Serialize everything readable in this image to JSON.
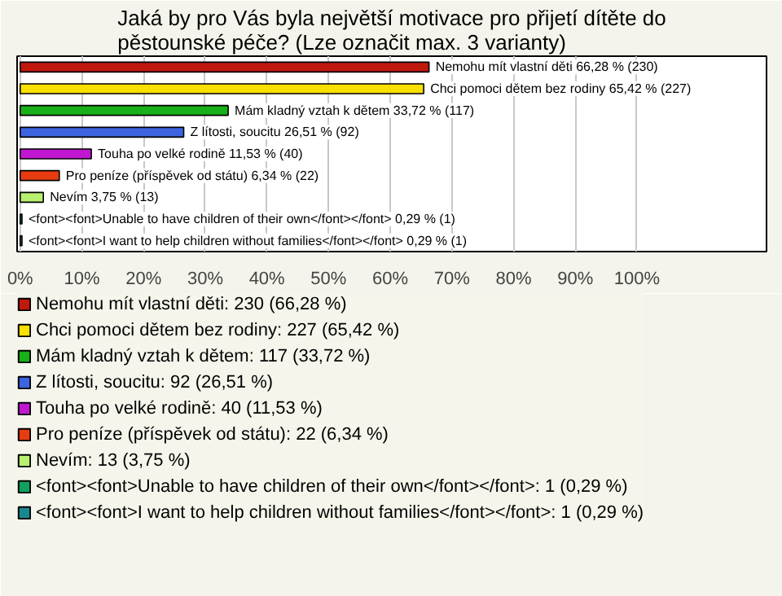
{
  "chart_data": {
    "type": "bar",
    "orientation": "horizontal",
    "title": "Jaká by pro Vás byla největší motivace pro přijetí dítěte do pěstounské péče? (Lze označit max. 3 varianty)",
    "categories": [
      null,
      null,
      null,
      null,
      null,
      null,
      null,
      null,
      null
    ],
    "series": [
      {
        "name": "Nemohu mít vlastní děti: 230 (66,28 %)",
        "color": "#c0180c",
        "values": [
          66.28,
          null,
          null,
          null,
          null,
          null,
          null,
          null,
          null
        ],
        "value_labels": [
          "Nemohu mít vlastní děti 66,28 % (230)",
          null,
          null,
          null,
          null,
          null,
          null,
          null,
          null
        ]
      },
      {
        "name": "Chci pomoci dětem bez rodiny: 227 (65,42 %)",
        "color": "#f8e000",
        "values": [
          null,
          65.42,
          null,
          null,
          null,
          null,
          null,
          null,
          null
        ],
        "value_labels": [
          null,
          "Chci pomoci dětem bez rodiny 65,42 % (227)",
          null,
          null,
          null,
          null,
          null,
          null,
          null
        ]
      },
      {
        "name": "Mám kladný vztah k dětem: 117 (33,72 %)",
        "color": "#18b018",
        "values": [
          null,
          null,
          33.72,
          null,
          null,
          null,
          null,
          null,
          null
        ],
        "value_labels": [
          null,
          null,
          "Mám kladný vztah k dětem 33,72 % (117)",
          null,
          null,
          null,
          null,
          null,
          null
        ]
      },
      {
        "name": "Z lítosti, soucitu: 92 (26,51 %)",
        "color": "#3c64e0",
        "values": [
          null,
          null,
          null,
          26.51,
          null,
          null,
          null,
          null,
          null
        ],
        "value_labels": [
          null,
          null,
          null,
          "Z lítosti, soucitu 26,51 % (92)",
          null,
          null,
          null,
          null,
          null
        ]
      },
      {
        "name": "Touha po velké rodině: 40 (11,53 %)",
        "color": "#c018d0",
        "values": [
          null,
          null,
          null,
          null,
          11.53,
          null,
          null,
          null,
          null
        ],
        "value_labels": [
          null,
          null,
          null,
          null,
          "Touha po velké rodině 11,53 % (40)",
          null,
          null,
          null,
          null
        ]
      },
      {
        "name": "Pro peníze (příspěvek od státu): 22 (6,34 %)",
        "color": "#e83c10",
        "values": [
          null,
          null,
          null,
          null,
          null,
          6.34,
          null,
          null,
          null
        ],
        "value_labels": [
          null,
          null,
          null,
          null,
          null,
          "Pro peníze (příspěvek od státu) 6,34 % (22)",
          null,
          null,
          null
        ]
      },
      {
        "name": "Nevím: 13 (3,75 %)",
        "color": "#b8f070",
        "values": [
          null,
          null,
          null,
          null,
          null,
          null,
          3.75,
          null,
          null
        ],
        "value_labels": [
          null,
          null,
          null,
          null,
          null,
          null,
          "Nevím 3,75 % (13)",
          null,
          null
        ]
      },
      {
        "name": "<font><font>Unable to have children of their own</font></font>: 1 (0,29 %)",
        "color": "#10a060",
        "values": [
          null,
          null,
          null,
          null,
          null,
          null,
          null,
          0.29,
          null
        ],
        "value_labels": [
          null,
          null,
          null,
          null,
          null,
          null,
          null,
          "<font><font>Unable to have children of their own</font></font> 0,29 % (1)",
          null
        ]
      },
      {
        "name": "<font><font>I want to help children without families</font></font>: 1 (0,29 %)",
        "color": "#188890",
        "values": [
          null,
          null,
          null,
          null,
          null,
          null,
          null,
          null,
          0.29
        ],
        "value_labels": [
          null,
          null,
          null,
          null,
          null,
          null,
          null,
          null,
          "<font><font>I want to help children without families</font></font> 0,29 % (1)"
        ]
      }
    ],
    "xlim": [
      -0.5,
      121
    ],
    "xticks": [
      {
        "value": 0,
        "label": "0%"
      },
      {
        "value": 10,
        "label": "10%"
      },
      {
        "value": 20,
        "label": "20%"
      },
      {
        "value": 30,
        "label": "30%"
      },
      {
        "value": 40,
        "label": "40%"
      },
      {
        "value": 50,
        "label": "50%"
      },
      {
        "value": 60,
        "label": "60%"
      },
      {
        "value": 70,
        "label": "70%"
      },
      {
        "value": 80,
        "label": "80%"
      },
      {
        "value": 90,
        "label": "90%"
      },
      {
        "value": 100,
        "label": "100%"
      }
    ],
    "grid": "x",
    "legend": "bottom",
    "tick_labels": "x"
  }
}
